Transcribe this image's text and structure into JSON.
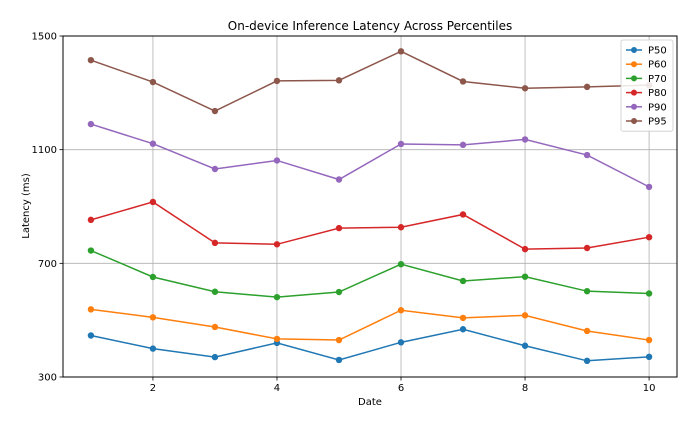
{
  "chart_data": {
    "type": "line",
    "title": "On-device Inference Latency Across Percentiles",
    "xlabel": "Date",
    "ylabel": "Latency (ms)",
    "x": [
      1,
      2,
      3,
      4,
      5,
      6,
      7,
      8,
      9,
      10
    ],
    "xlim": [
      0.55,
      10.45
    ],
    "ylim": [
      300,
      1500
    ],
    "xticks": [
      2,
      4,
      6,
      8,
      10
    ],
    "yticks": [
      300,
      700,
      1100,
      1500
    ],
    "grid": true,
    "legend_position": "top-right",
    "series": [
      {
        "name": "P50",
        "color": "#1f77b4",
        "values": [
          446,
          400,
          370,
          420,
          360,
          422,
          468,
          410,
          357,
          371
        ]
      },
      {
        "name": "P60",
        "color": "#ff7f0e",
        "values": [
          538,
          510,
          476,
          434,
          430,
          535,
          508,
          517,
          462,
          430
        ]
      },
      {
        "name": "P70",
        "color": "#2ca02c",
        "values": [
          745,
          652,
          600,
          581,
          599,
          697,
          638,
          653,
          602,
          594
        ]
      },
      {
        "name": "P80",
        "color": "#d62728",
        "values": [
          853,
          916,
          772,
          767,
          824,
          827,
          872,
          750,
          754,
          792
        ]
      },
      {
        "name": "P90",
        "color": "#9467bd",
        "values": [
          1190,
          1121,
          1032,
          1062,
          995,
          1120,
          1117,
          1136,
          1081,
          969
        ]
      },
      {
        "name": "P95",
        "color": "#8c564b",
        "values": [
          1415,
          1338,
          1236,
          1342,
          1344,
          1446,
          1340,
          1316,
          1321,
          1327
        ]
      }
    ]
  }
}
